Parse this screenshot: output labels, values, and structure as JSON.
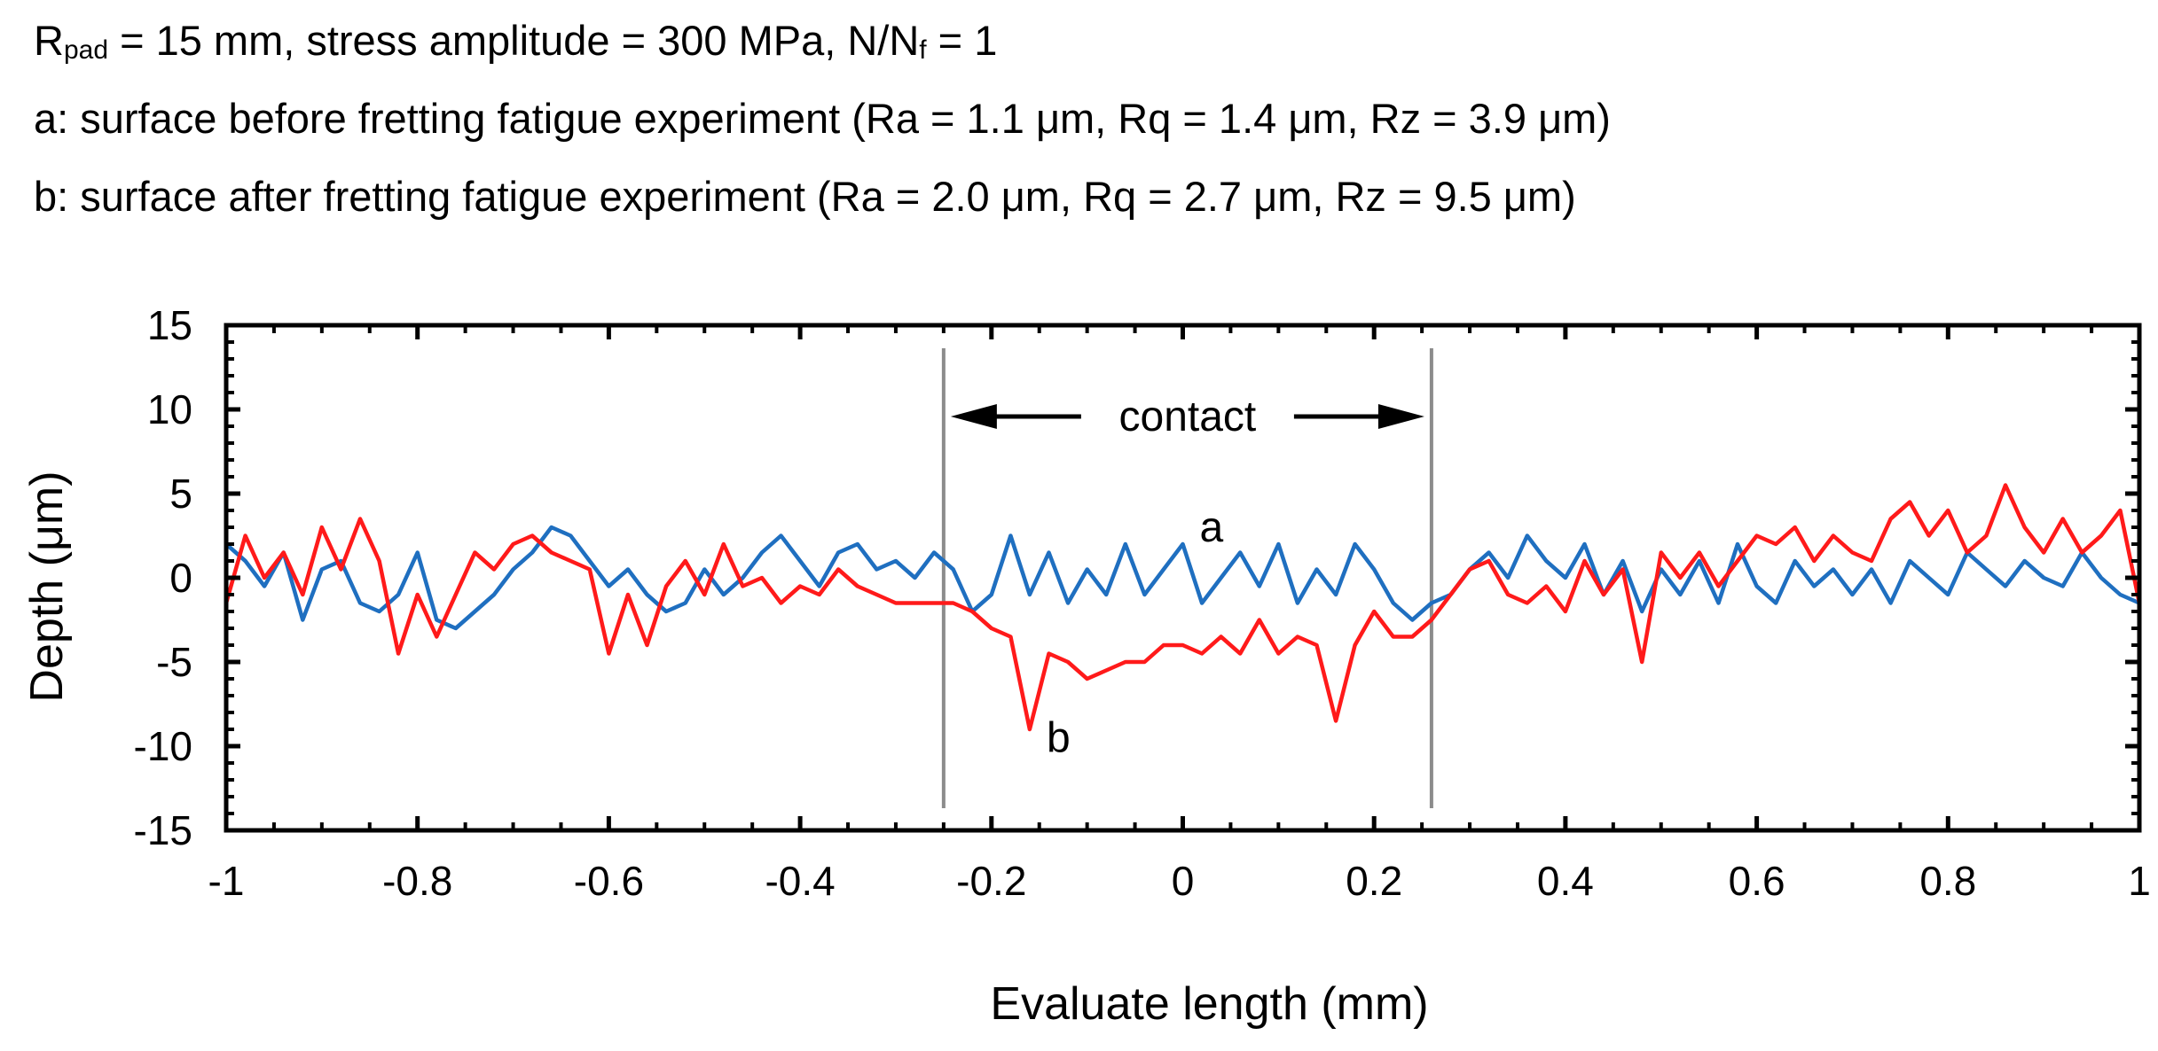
{
  "header": {
    "line1_R": "R",
    "line1_sub_pad": "pad",
    "line1_mid": " = 15 mm, stress amplitude = 300 MPa, N/N",
    "line1_sub_f": "f",
    "line1_end": " = 1",
    "line2_text": "a: surface before fretting fatigue experiment",
    "line2_params": "(Ra = 1.1 μm, Rq = 1.4 μm, Rz = 3.9 μm)",
    "line3_text": "b: surface after fretting fatigue experiment",
    "line3_params": "(Ra = 2.0 μm, Rq = 2.7 μm, Rz = 9.5 μm)"
  },
  "chart_data": {
    "type": "line",
    "title": "",
    "xlabel": "Evaluate length (mm)",
    "ylabel": "Depth (μm)",
    "xlim": [
      -1,
      1
    ],
    "ylim": [
      -15,
      15
    ],
    "x_ticks": [
      -1,
      -0.8,
      -0.6,
      -0.4,
      -0.2,
      0,
      0.2,
      0.4,
      0.6,
      0.8,
      1
    ],
    "x_tick_labels": [
      "-1",
      "-0.8",
      "-0.6",
      "-0.4",
      "-0.2",
      "0",
      "0.2",
      "0.4",
      "0.6",
      "0.8",
      "1"
    ],
    "y_ticks": [
      -15,
      -10,
      -5,
      0,
      5,
      10,
      15
    ],
    "y_tick_labels": [
      "-15",
      "-10",
      "-5",
      "0",
      "5",
      "10",
      "15"
    ],
    "contact_region": {
      "label": "contact",
      "x_start": -0.25,
      "x_end": 0.26
    },
    "series": [
      {
        "name": "a",
        "label": "a",
        "color": "#1f6fc0",
        "label_at": [
          0.03,
          3.0
        ],
        "x": [
          -1.0,
          -0.98,
          -0.96,
          -0.94,
          -0.92,
          -0.9,
          -0.88,
          -0.86,
          -0.84,
          -0.82,
          -0.8,
          -0.78,
          -0.76,
          -0.74,
          -0.72,
          -0.7,
          -0.68,
          -0.66,
          -0.64,
          -0.62,
          -0.6,
          -0.58,
          -0.56,
          -0.54,
          -0.52,
          -0.5,
          -0.48,
          -0.46,
          -0.44,
          -0.42,
          -0.4,
          -0.38,
          -0.36,
          -0.34,
          -0.32,
          -0.3,
          -0.28,
          -0.26,
          -0.24,
          -0.22,
          -0.2,
          -0.18,
          -0.16,
          -0.14,
          -0.12,
          -0.1,
          -0.08,
          -0.06,
          -0.04,
          -0.02,
          0.0,
          0.02,
          0.04,
          0.06,
          0.08,
          0.1,
          0.12,
          0.14,
          0.16,
          0.18,
          0.2,
          0.22,
          0.24,
          0.26,
          0.28,
          0.3,
          0.32,
          0.34,
          0.36,
          0.38,
          0.4,
          0.42,
          0.44,
          0.46,
          0.48,
          0.5,
          0.52,
          0.54,
          0.56,
          0.58,
          0.6,
          0.62,
          0.64,
          0.66,
          0.68,
          0.7,
          0.72,
          0.74,
          0.76,
          0.78,
          0.8,
          0.82,
          0.84,
          0.86,
          0.88,
          0.9,
          0.92,
          0.94,
          0.96,
          0.98,
          1.0
        ],
        "y": [
          2.0,
          1.0,
          -0.5,
          1.5,
          -2.5,
          0.5,
          1.0,
          -1.5,
          -2.0,
          -1.0,
          1.5,
          -2.5,
          -3.0,
          -2.0,
          -1.0,
          0.5,
          1.5,
          3.0,
          2.5,
          1.0,
          -0.5,
          0.5,
          -1.0,
          -2.0,
          -1.5,
          0.5,
          -1.0,
          0.0,
          1.5,
          2.5,
          1.0,
          -0.5,
          1.5,
          2.0,
          0.5,
          1.0,
          0.0,
          1.5,
          0.5,
          -2.0,
          -1.0,
          2.5,
          -1.0,
          1.5,
          -1.5,
          0.5,
          -1.0,
          2.0,
          -1.0,
          0.5,
          2.0,
          -1.5,
          0.0,
          1.5,
          -0.5,
          2.0,
          -1.5,
          0.5,
          -1.0,
          2.0,
          0.5,
          -1.5,
          -2.5,
          -1.5,
          -1.0,
          0.5,
          1.5,
          0.0,
          2.5,
          1.0,
          0.0,
          2.0,
          -1.0,
          1.0,
          -2.0,
          0.5,
          -1.0,
          1.0,
          -1.5,
          2.0,
          -0.5,
          -1.5,
          1.0,
          -0.5,
          0.5,
          -1.0,
          0.5,
          -1.5,
          1.0,
          0.0,
          -1.0,
          1.5,
          0.5,
          -0.5,
          1.0,
          0.0,
          -0.5,
          1.5,
          0.0,
          -1.0,
          -1.5
        ]
      },
      {
        "name": "b",
        "label": "b",
        "color": "#ff1a1a",
        "label_at": [
          -0.13,
          -9.5
        ],
        "x": [
          -1.0,
          -0.98,
          -0.96,
          -0.94,
          -0.92,
          -0.9,
          -0.88,
          -0.86,
          -0.84,
          -0.82,
          -0.8,
          -0.78,
          -0.76,
          -0.74,
          -0.72,
          -0.7,
          -0.68,
          -0.66,
          -0.64,
          -0.62,
          -0.6,
          -0.58,
          -0.56,
          -0.54,
          -0.52,
          -0.5,
          -0.48,
          -0.46,
          -0.44,
          -0.42,
          -0.4,
          -0.38,
          -0.36,
          -0.34,
          -0.32,
          -0.3,
          -0.28,
          -0.26,
          -0.24,
          -0.22,
          -0.2,
          -0.18,
          -0.16,
          -0.14,
          -0.12,
          -0.1,
          -0.08,
          -0.06,
          -0.04,
          -0.02,
          0.0,
          0.02,
          0.04,
          0.06,
          0.08,
          0.1,
          0.12,
          0.14,
          0.16,
          0.18,
          0.2,
          0.22,
          0.24,
          0.26,
          0.28,
          0.3,
          0.32,
          0.34,
          0.36,
          0.38,
          0.4,
          0.42,
          0.44,
          0.46,
          0.48,
          0.5,
          0.52,
          0.54,
          0.56,
          0.58,
          0.6,
          0.62,
          0.64,
          0.66,
          0.68,
          0.7,
          0.72,
          0.74,
          0.76,
          0.78,
          0.8,
          0.82,
          0.84,
          0.86,
          0.88,
          0.9,
          0.92,
          0.94,
          0.96,
          0.98,
          1.0
        ],
        "y": [
          -1.5,
          2.5,
          0.0,
          1.5,
          -1.0,
          3.0,
          0.5,
          3.5,
          1.0,
          -4.5,
          -1.0,
          -3.5,
          -1.0,
          1.5,
          0.5,
          2.0,
          2.5,
          1.5,
          1.0,
          0.5,
          -4.5,
          -1.0,
          -4.0,
          -0.5,
          1.0,
          -1.0,
          2.0,
          -0.5,
          0.0,
          -1.5,
          -0.5,
          -1.0,
          0.5,
          -0.5,
          -1.0,
          -1.5,
          -1.5,
          -1.5,
          -1.5,
          -2.0,
          -3.0,
          -3.5,
          -9.0,
          -4.5,
          -5.0,
          -6.0,
          -5.5,
          -5.0,
          -5.0,
          -4.0,
          -4.0,
          -4.5,
          -3.5,
          -4.5,
          -2.5,
          -4.5,
          -3.5,
          -4.0,
          -8.5,
          -4.0,
          -2.0,
          -3.5,
          -3.5,
          -2.5,
          -1.0,
          0.5,
          1.0,
          -1.0,
          -1.5,
          -0.5,
          -2.0,
          1.0,
          -1.0,
          0.5,
          -5.0,
          1.5,
          0.0,
          1.5,
          -0.5,
          1.0,
          2.5,
          2.0,
          3.0,
          1.0,
          2.5,
          1.5,
          1.0,
          3.5,
          4.5,
          2.5,
          4.0,
          1.5,
          2.5,
          5.5,
          3.0,
          1.5,
          3.5,
          1.5,
          2.5,
          4.0,
          -1.5
        ]
      }
    ]
  }
}
